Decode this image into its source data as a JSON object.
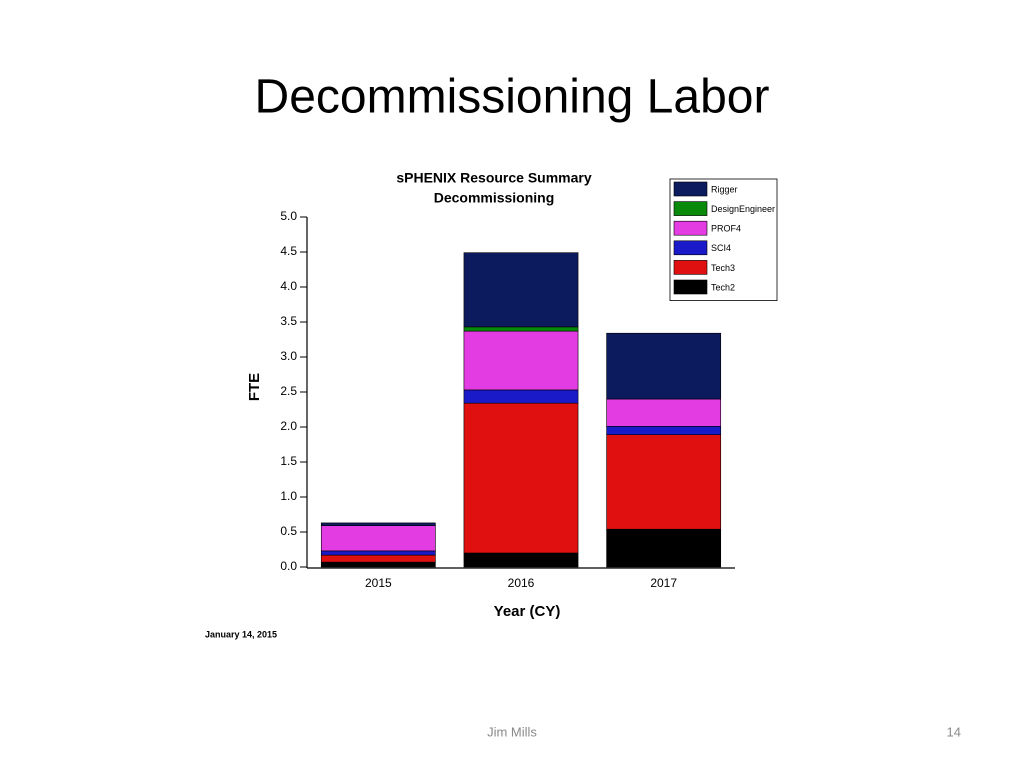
{
  "slide_title": "Decommissioning Labor",
  "chart_data": {
    "type": "stacked_bar",
    "title": "sPHENIX Resource Summary",
    "subtitle": "Decommissioning",
    "x_label": "Year (CY)",
    "y_label": "FTE",
    "categories": [
      "2015",
      "2016",
      "2017"
    ],
    "series": [
      {
        "name": "Tech2",
        "color": "#000000",
        "values": [
          0.07,
          0.2,
          0.54
        ]
      },
      {
        "name": "Tech3",
        "color": "#e01010",
        "values": [
          0.1,
          2.14,
          1.35
        ]
      },
      {
        "name": "SCI4",
        "color": "#1a1ac8",
        "values": [
          0.06,
          0.19,
          0.12
        ]
      },
      {
        "name": "PROF4",
        "color": "#e23ce2",
        "values": [
          0.36,
          0.84,
          0.39
        ]
      },
      {
        "name": "DesignEngineer",
        "color": "#0a8a0a",
        "values": [
          0,
          0.06,
          0
        ]
      },
      {
        "name": "Rigger",
        "color": "#0c1a5e",
        "values": [
          0.04,
          1.06,
          0.94
        ]
      }
    ],
    "ylim": [
      0,
      5
    ],
    "yticks": [
      {
        "value": 0,
        "label": "0.0"
      },
      {
        "value": 0.5,
        "label": "0.5"
      },
      {
        "value": 1,
        "label": "1.0"
      },
      {
        "value": 1.5,
        "label": "1.5"
      },
      {
        "value": 2,
        "label": "2.0"
      },
      {
        "value": 2.5,
        "label": "2.5"
      },
      {
        "value": 3,
        "label": "3.0"
      },
      {
        "value": 3.5,
        "label": "3.5"
      },
      {
        "value": 4,
        "label": "4.0"
      },
      {
        "value": 4.5,
        "label": "4.5"
      },
      {
        "value": 5,
        "label": "5.0"
      }
    ],
    "legend": "upper right",
    "grid": false
  },
  "date_note": "January 14, 2015",
  "footer": "Jim Mills",
  "page_number": "14"
}
